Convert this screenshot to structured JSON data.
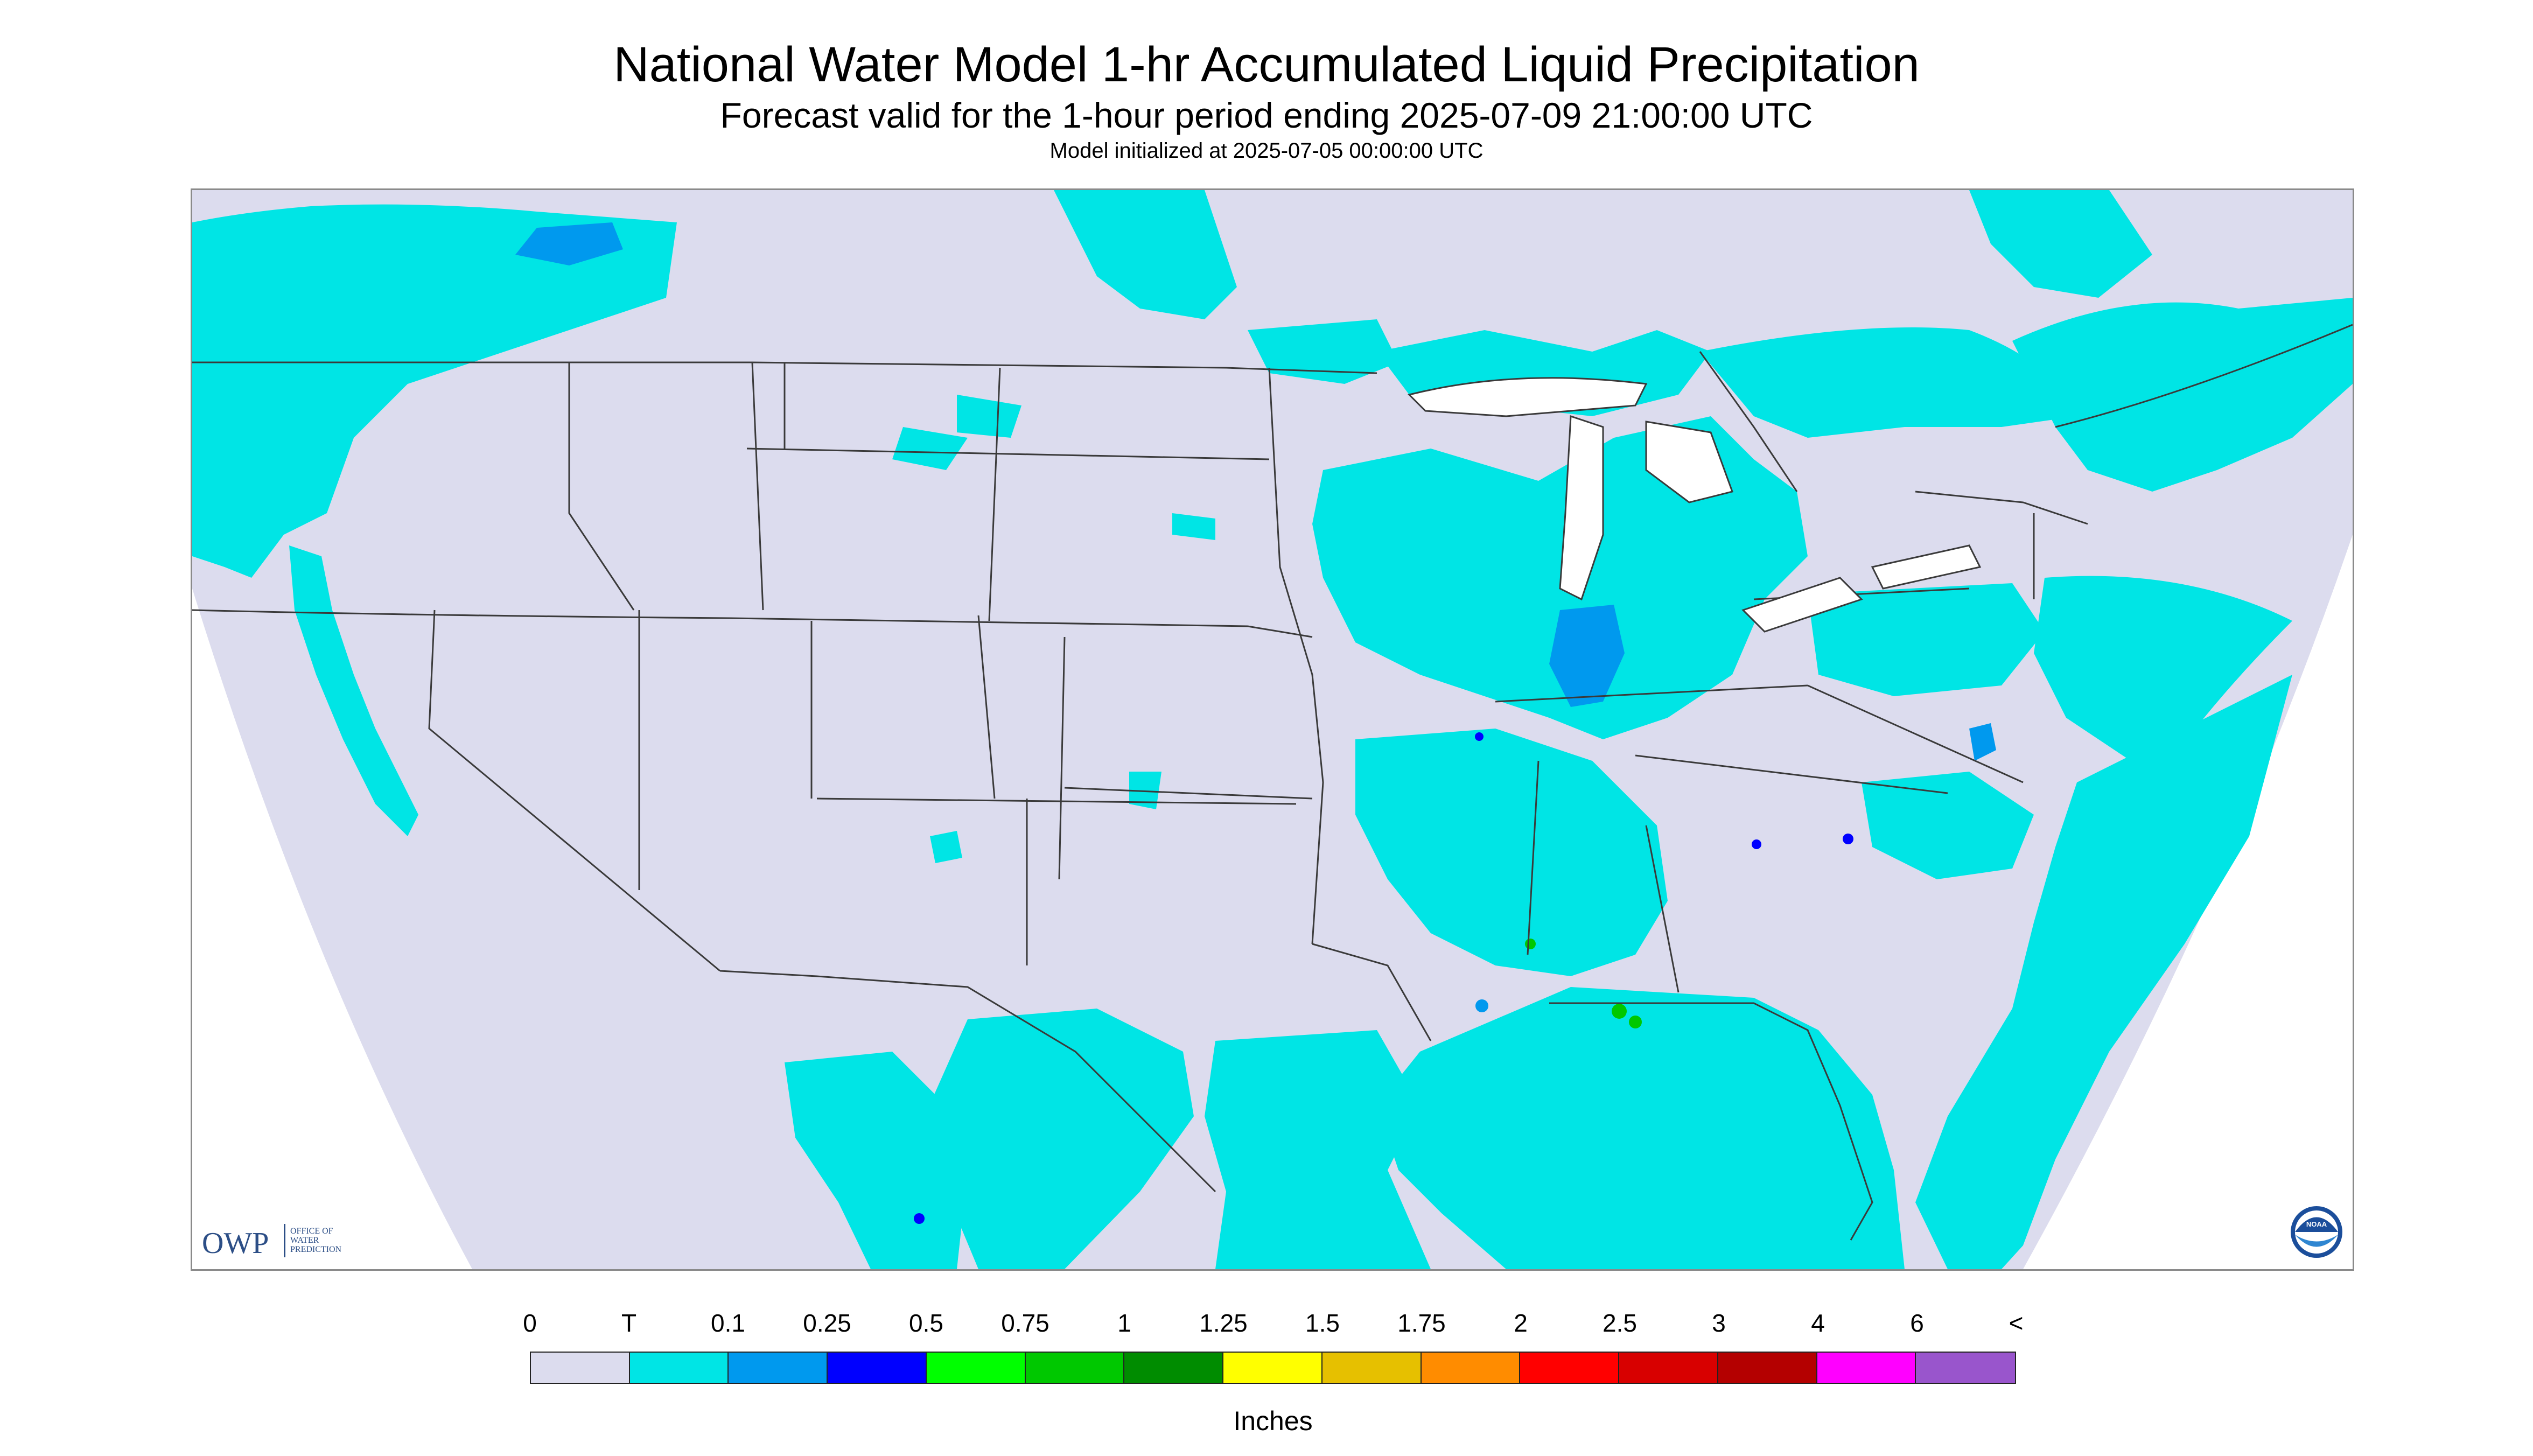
{
  "header": {
    "title": "National Water Model 1-hr Accumulated Liquid Precipitation",
    "subtitle": "Forecast valid for the 1-hour period ending 2025-07-09 21:00:00 UTC",
    "init_line": "Model initialized at 2025-07-05 00:00:00 UTC"
  },
  "logos": {
    "owp_text": "OWP",
    "owp_sub": [
      "OFFICE OF",
      "WATER",
      "PREDICTION"
    ],
    "noaa_text": "NOAA"
  },
  "colors": {
    "no_data": "#ffffff",
    "zero": "#dcdcee",
    "trace": "#00e5e5",
    "border": "#3a3a3a"
  },
  "legend": {
    "labels": [
      "0",
      "T",
      "0.1",
      "0.25",
      "0.5",
      "0.75",
      "1",
      "1.25",
      "1.5",
      "1.75",
      "2",
      "2.5",
      "3",
      "4",
      "6",
      "<"
    ],
    "colors": [
      "#dcdcee",
      "#00e5e5",
      "#0099ee",
      "#0000ff",
      "#00ff00",
      "#00c800",
      "#008c00",
      "#ffff00",
      "#e6c000",
      "#ff8c00",
      "#ff0000",
      "#d80000",
      "#b40000",
      "#ff00ff",
      "#9955cc"
    ],
    "unit": "Inches"
  }
}
